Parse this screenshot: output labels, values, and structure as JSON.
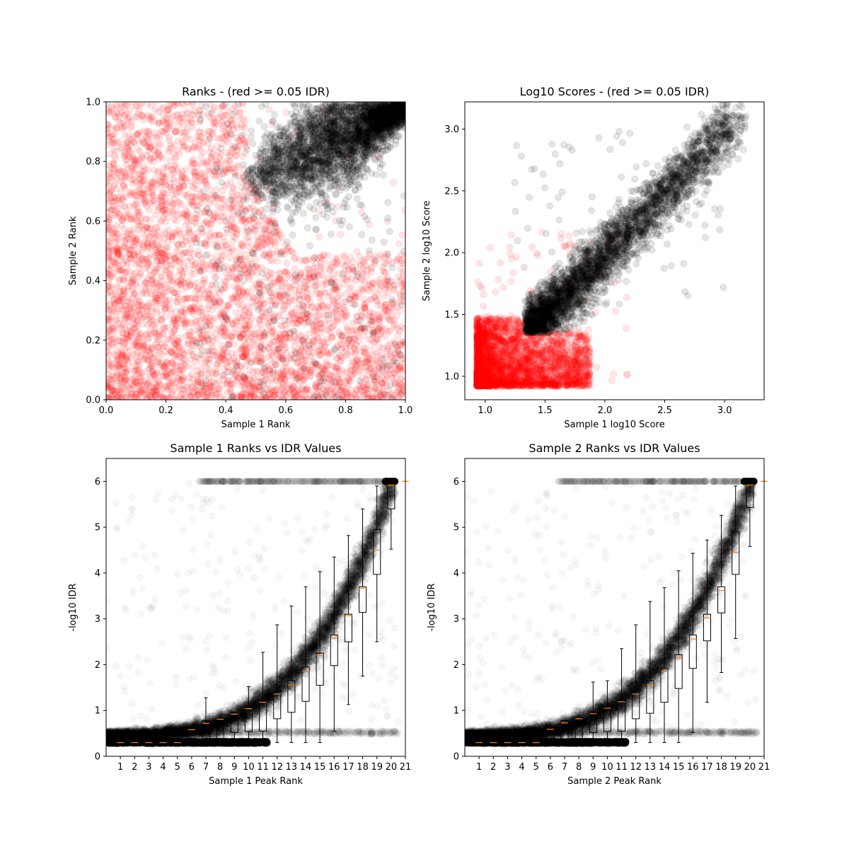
{
  "figure": {
    "background": "#ffffff"
  },
  "chart_data": [
    {
      "id": "ranks",
      "type": "scatter",
      "title": "Ranks - (red >= 0.05 IDR)",
      "xlabel": "Sample 1 Rank",
      "ylabel": "Sample 2 Rank",
      "xlim": [
        0.0,
        1.0
      ],
      "ylim": [
        0.0,
        1.0
      ],
      "xticks": [
        0.0,
        0.2,
        0.4,
        0.6,
        0.8,
        1.0
      ],
      "yticks": [
        0.0,
        0.2,
        0.4,
        0.6,
        0.8,
        1.0
      ],
      "xtick_labels": [
        "0.0",
        "0.2",
        "0.4",
        "0.6",
        "0.8",
        "1.0"
      ],
      "ytick_labels": [
        "0.0",
        "0.2",
        "0.4",
        "0.6",
        "0.8",
        "1.0"
      ],
      "point_alpha": 0.1,
      "series": [
        {
          "color": "#ff0000",
          "rule": "IDR >= 0.05",
          "region": "dense cloud filling low ranks, boundary curving from (0.5, 1.0) down to (0.85, 0.5)"
        },
        {
          "color": "#000000",
          "rule": "IDR < 0.05",
          "region": "dense teardrop from (0.47, 0.65) to (1.0, 1.0), lower edge near y = 0.49"
        }
      ]
    },
    {
      "id": "scores",
      "type": "scatter",
      "title": "Log10 Scores - (red >= 0.05 IDR)",
      "xlabel": "Sample 1 log10 Score",
      "ylabel": "Sample 2 log10 Score",
      "xlim": [
        0.83,
        3.33
      ],
      "ylim": [
        0.81,
        3.22
      ],
      "xticks": [
        1.0,
        1.5,
        2.0,
        2.5,
        3.0
      ],
      "yticks": [
        1.0,
        1.5,
        2.0,
        2.5,
        3.0
      ],
      "xtick_labels": [
        "1.0",
        "1.5",
        "2.0",
        "2.5",
        "3.0"
      ],
      "ytick_labels": [
        "1.0",
        "1.5",
        "2.0",
        "2.5",
        "3.0"
      ],
      "point_alpha": 0.1,
      "series": [
        {
          "color": "#ff0000",
          "rule": "IDR >= 0.05",
          "region": "block from (0.93, 0.92) to about (1.9, 1.5), sparse points up to 2.2"
        },
        {
          "color": "#000000",
          "rule": "IDR < 0.05",
          "region": "diagonal band from (1.33, 1.33) to about (3.2, 3.1), lower edge near y = 1.35"
        }
      ]
    },
    {
      "id": "sample1-idr",
      "type": "scatter",
      "title": "Sample 1 Ranks vs IDR Values",
      "xlabel": "Sample 1 Peak Rank",
      "ylabel": "-log10 IDR",
      "xlim": [
        0,
        21
      ],
      "ylim": [
        0,
        6.5
      ],
      "xticks": [
        1,
        2,
        3,
        4,
        5,
        6,
        7,
        8,
        9,
        10,
        11,
        12,
        13,
        14,
        15,
        16,
        17,
        18,
        19,
        20,
        21
      ],
      "yticks": [
        0,
        1,
        2,
        3,
        4,
        5,
        6
      ],
      "xtick_labels": [
        "1",
        "2",
        "3",
        "4",
        "5",
        "6",
        "7",
        "8",
        "9",
        "10",
        "11",
        "12",
        "13",
        "14",
        "15",
        "16",
        "17",
        "18",
        "19",
        "20",
        "21"
      ],
      "ytick_labels": [
        "0",
        "1",
        "2",
        "3",
        "4",
        "5",
        "6"
      ],
      "point_alpha": 0.03,
      "point_color": "#000000",
      "median_color": "#ff7f0e",
      "boxplot": [
        {
          "x": 1,
          "q1": 0.3,
          "median": 0.3,
          "q3": 0.3,
          "whisker_low": 0.3,
          "whisker_high": 0.3
        },
        {
          "x": 2,
          "q1": 0.3,
          "median": 0.3,
          "q3": 0.3,
          "whisker_low": 0.3,
          "whisker_high": 0.3
        },
        {
          "x": 3,
          "q1": 0.3,
          "median": 0.3,
          "q3": 0.3,
          "whisker_low": 0.3,
          "whisker_high": 0.3
        },
        {
          "x": 4,
          "q1": 0.3,
          "median": 0.3,
          "q3": 0.5,
          "whisker_low": 0.3,
          "whisker_high": 0.5
        },
        {
          "x": 5,
          "q1": 0.3,
          "median": 0.3,
          "q3": 0.52,
          "whisker_low": 0.3,
          "whisker_high": 0.55
        },
        {
          "x": 6,
          "q1": 0.3,
          "median": 0.58,
          "q3": 0.6,
          "whisker_low": 0.3,
          "whisker_high": 0.6
        },
        {
          "x": 7,
          "q1": 0.3,
          "median": 0.72,
          "q3": 0.78,
          "whisker_low": 0.3,
          "whisker_high": 1.28
        },
        {
          "x": 8,
          "q1": 0.3,
          "median": 0.81,
          "q3": 0.83,
          "whisker_low": 0.3,
          "whisker_high": 0.9
        },
        {
          "x": 9,
          "q1": 0.52,
          "median": 0.92,
          "q3": 0.95,
          "whisker_low": 0.3,
          "whisker_high": 0.95
        },
        {
          "x": 10,
          "q1": 0.54,
          "median": 1.04,
          "q3": 1.1,
          "whisker_low": 0.3,
          "whisker_high": 1.52
        },
        {
          "x": 11,
          "q1": 0.55,
          "median": 1.18,
          "q3": 1.23,
          "whisker_low": 0.3,
          "whisker_high": 2.27
        },
        {
          "x": 12,
          "q1": 0.82,
          "median": 1.36,
          "q3": 1.42,
          "whisker_low": 0.3,
          "whisker_high": 2.87
        },
        {
          "x": 13,
          "q1": 0.96,
          "median": 1.56,
          "q3": 1.65,
          "whisker_low": 0.3,
          "whisker_high": 3.28
        },
        {
          "x": 14,
          "q1": 1.2,
          "median": 1.86,
          "q3": 1.95,
          "whisker_low": 0.3,
          "whisker_high": 3.7
        },
        {
          "x": 15,
          "q1": 1.55,
          "median": 2.2,
          "q3": 2.25,
          "whisker_low": 0.3,
          "whisker_high": 4.03
        },
        {
          "x": 16,
          "q1": 1.98,
          "median": 2.58,
          "q3": 2.65,
          "whisker_low": 0.55,
          "whisker_high": 4.35
        },
        {
          "x": 17,
          "q1": 2.5,
          "median": 3.07,
          "q3": 3.1,
          "whisker_low": 1.13,
          "whisker_high": 4.82
        },
        {
          "x": 18,
          "q1": 3.14,
          "median": 3.67,
          "q3": 3.7,
          "whisker_low": 1.75,
          "whisker_high": 5.4
        },
        {
          "x": 19,
          "q1": 3.97,
          "median": 4.5,
          "q3": 4.95,
          "whisker_low": 2.5,
          "whisker_high": 5.9
        },
        {
          "x": 20,
          "q1": 5.4,
          "median": 5.92,
          "q3": 6.0,
          "whisker_low": 4.52,
          "whisker_high": 6.0
        },
        {
          "x": 21,
          "q1": 6.0,
          "median": 6.0,
          "q3": 6.0,
          "whisker_low": 6.0,
          "whisker_high": 6.0
        }
      ]
    },
    {
      "id": "sample2-idr",
      "type": "scatter",
      "title": "Sample 2 Ranks vs IDR Values",
      "xlabel": "Sample 2 Peak Rank",
      "ylabel": "-log10 IDR",
      "xlim": [
        0,
        21
      ],
      "ylim": [
        0,
        6.5
      ],
      "xticks": [
        1,
        2,
        3,
        4,
        5,
        6,
        7,
        8,
        9,
        10,
        11,
        12,
        13,
        14,
        15,
        16,
        17,
        18,
        19,
        20,
        21
      ],
      "yticks": [
        0,
        1,
        2,
        3,
        4,
        5,
        6
      ],
      "xtick_labels": [
        "1",
        "2",
        "3",
        "4",
        "5",
        "6",
        "7",
        "8",
        "9",
        "10",
        "11",
        "12",
        "13",
        "14",
        "15",
        "16",
        "17",
        "18",
        "19",
        "20",
        "21"
      ],
      "ytick_labels": [
        "0",
        "1",
        "2",
        "3",
        "4",
        "5",
        "6"
      ],
      "point_alpha": 0.03,
      "point_color": "#000000",
      "median_color": "#ff7f0e",
      "boxplot": [
        {
          "x": 1,
          "q1": 0.3,
          "median": 0.3,
          "q3": 0.3,
          "whisker_low": 0.3,
          "whisker_high": 0.3
        },
        {
          "x": 2,
          "q1": 0.3,
          "median": 0.3,
          "q3": 0.3,
          "whisker_low": 0.3,
          "whisker_high": 0.3
        },
        {
          "x": 3,
          "q1": 0.3,
          "median": 0.3,
          "q3": 0.3,
          "whisker_low": 0.3,
          "whisker_high": 0.3
        },
        {
          "x": 4,
          "q1": 0.3,
          "median": 0.3,
          "q3": 0.5,
          "whisker_low": 0.3,
          "whisker_high": 0.5
        },
        {
          "x": 5,
          "q1": 0.3,
          "median": 0.3,
          "q3": 0.52,
          "whisker_low": 0.3,
          "whisker_high": 0.55
        },
        {
          "x": 6,
          "q1": 0.3,
          "median": 0.59,
          "q3": 0.6,
          "whisker_low": 0.3,
          "whisker_high": 0.6
        },
        {
          "x": 7,
          "q1": 0.3,
          "median": 0.73,
          "q3": 0.78,
          "whisker_low": 0.3,
          "whisker_high": 0.78
        },
        {
          "x": 8,
          "q1": 0.3,
          "median": 0.82,
          "q3": 0.85,
          "whisker_low": 0.3,
          "whisker_high": 0.9
        },
        {
          "x": 9,
          "q1": 0.52,
          "median": 0.93,
          "q3": 0.97,
          "whisker_low": 0.3,
          "whisker_high": 1.62
        },
        {
          "x": 10,
          "q1": 0.54,
          "median": 1.05,
          "q3": 1.1,
          "whisker_low": 0.3,
          "whisker_high": 1.65
        },
        {
          "x": 11,
          "q1": 0.55,
          "median": 1.19,
          "q3": 1.24,
          "whisker_low": 0.3,
          "whisker_high": 2.35
        },
        {
          "x": 12,
          "q1": 0.82,
          "median": 1.36,
          "q3": 1.42,
          "whisker_low": 0.3,
          "whisker_high": 2.87
        },
        {
          "x": 13,
          "q1": 0.94,
          "median": 1.56,
          "q3": 1.65,
          "whisker_low": 0.3,
          "whisker_high": 3.38
        },
        {
          "x": 14,
          "q1": 1.18,
          "median": 1.85,
          "q3": 1.92,
          "whisker_low": 0.3,
          "whisker_high": 3.68
        },
        {
          "x": 15,
          "q1": 1.48,
          "median": 2.15,
          "q3": 2.22,
          "whisker_low": 0.3,
          "whisker_high": 4.05
        },
        {
          "x": 16,
          "q1": 1.92,
          "median": 2.56,
          "q3": 2.65,
          "whisker_low": 0.52,
          "whisker_high": 4.43
        },
        {
          "x": 17,
          "q1": 2.52,
          "median": 3.02,
          "q3": 3.1,
          "whisker_low": 1.18,
          "whisker_high": 4.72
        },
        {
          "x": 18,
          "q1": 3.13,
          "median": 3.62,
          "q3": 3.7,
          "whisker_low": 1.83,
          "whisker_high": 5.26
        },
        {
          "x": 19,
          "q1": 3.97,
          "median": 4.45,
          "q3": 4.9,
          "whisker_low": 2.57,
          "whisker_high": 5.9
        },
        {
          "x": 20,
          "q1": 5.43,
          "median": 5.92,
          "q3": 6.0,
          "whisker_low": 4.58,
          "whisker_high": 6.0
        },
        {
          "x": 21,
          "q1": 6.0,
          "median": 6.0,
          "q3": 6.0,
          "whisker_low": 6.0,
          "whisker_high": 6.0
        }
      ]
    }
  ]
}
